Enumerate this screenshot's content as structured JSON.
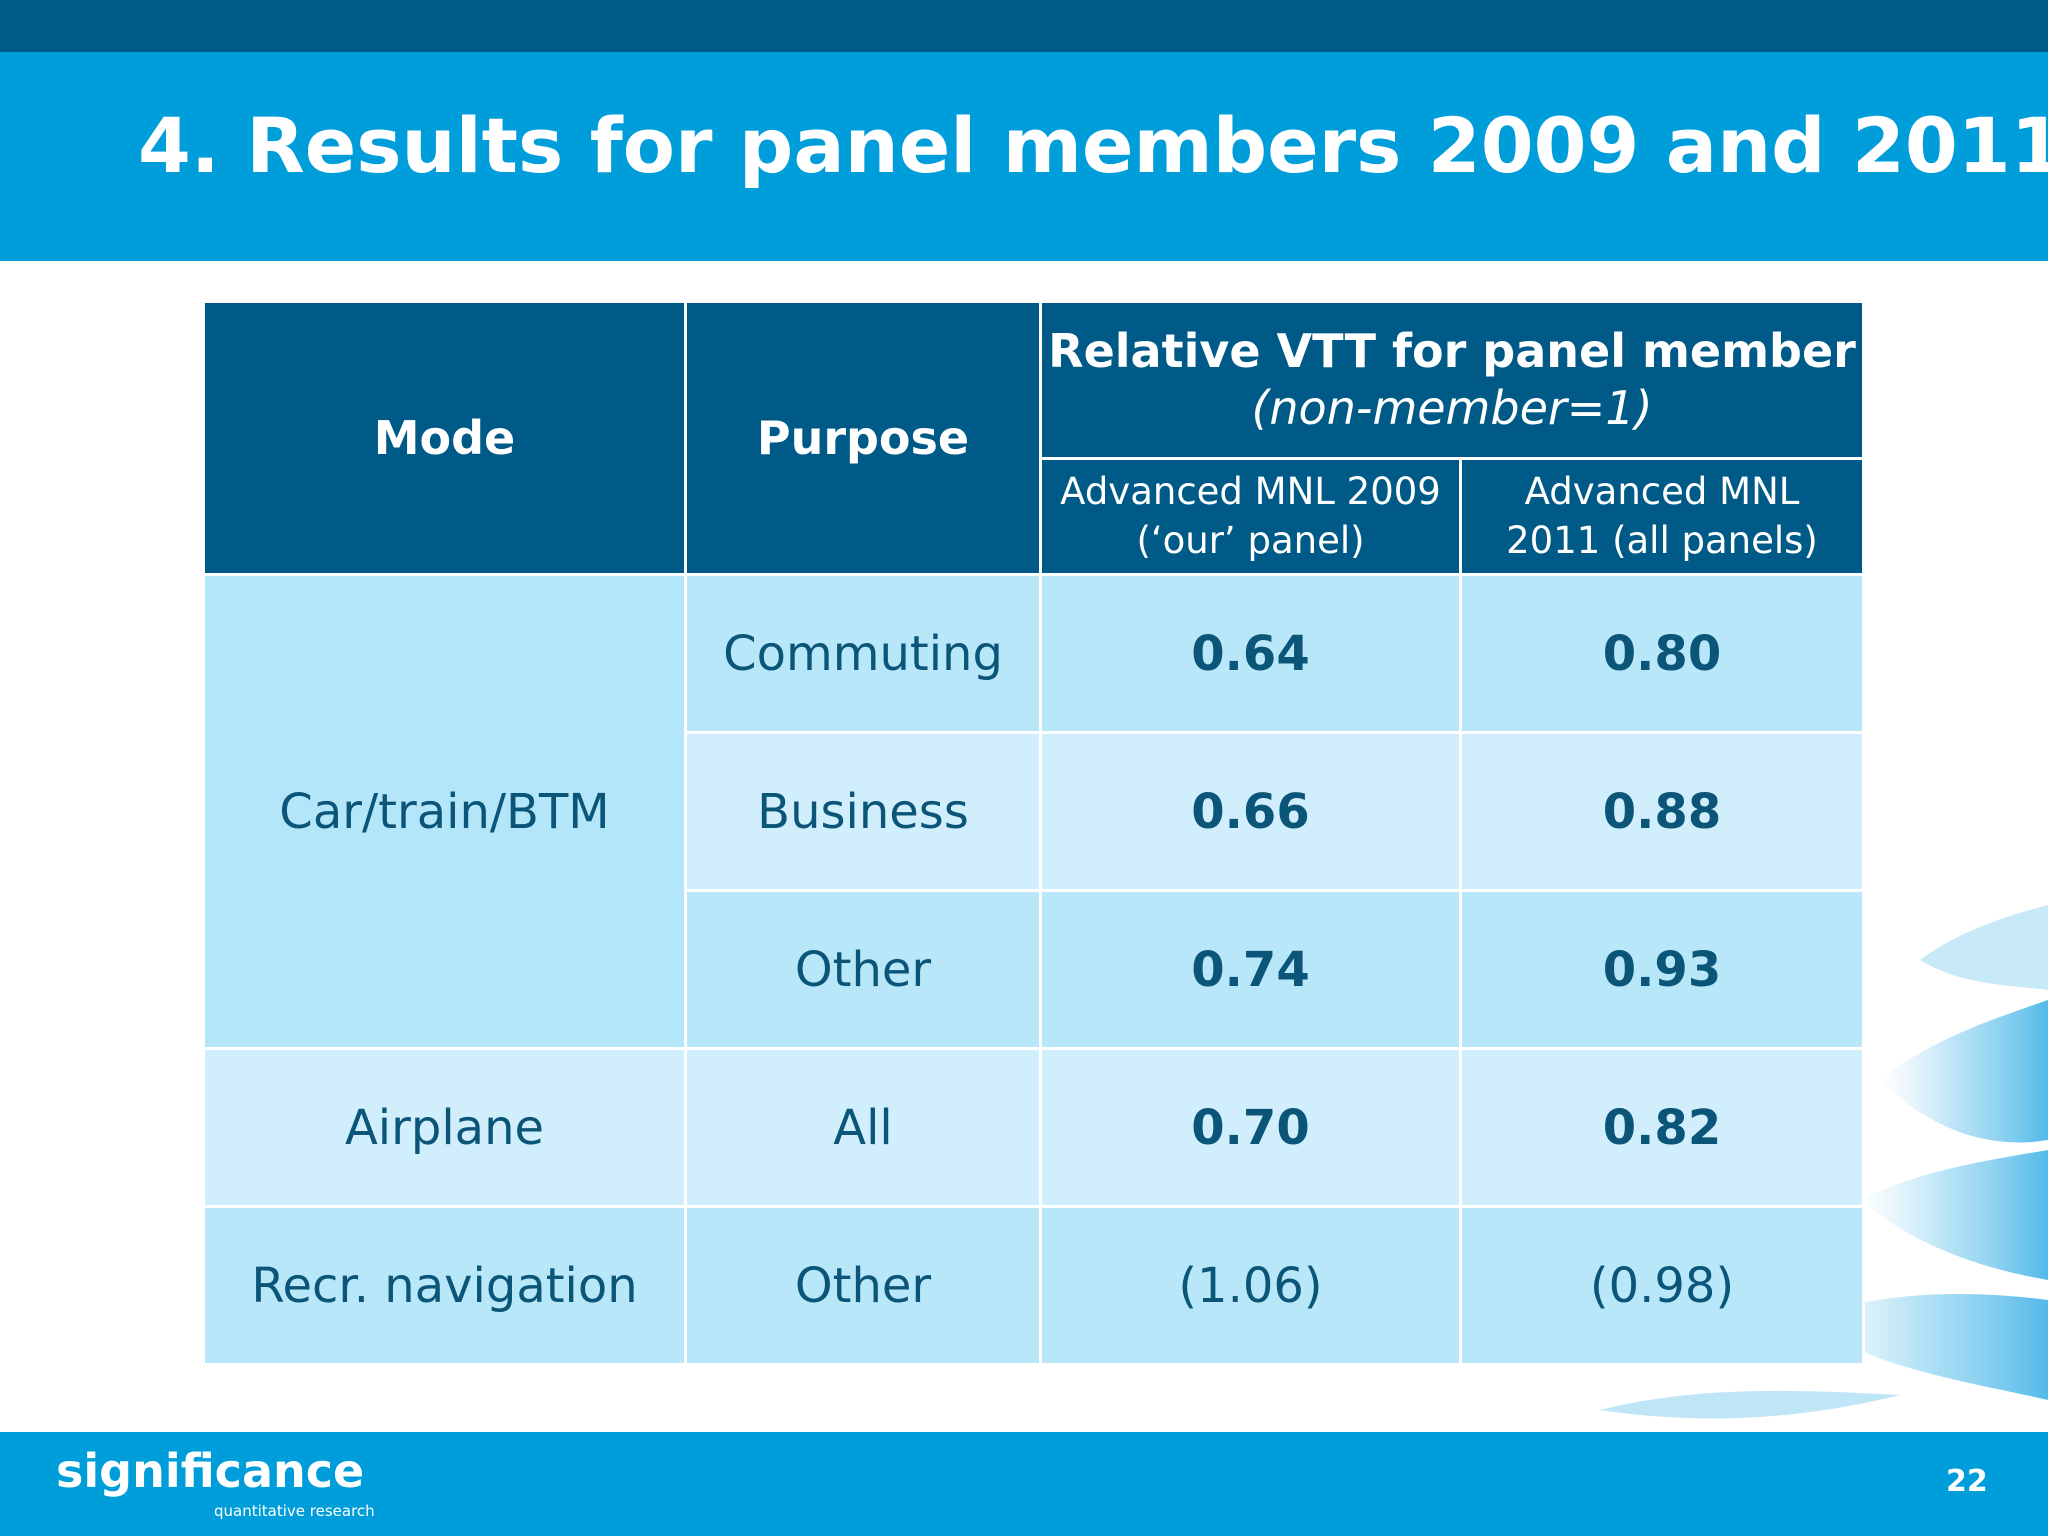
{
  "slide": {
    "title": "4. Results for panel members 2009 and 2011",
    "page_number": "22"
  },
  "logo": {
    "name": "significance",
    "tagline": "quantitative research"
  },
  "table": {
    "headers": {
      "mode": "Mode",
      "purpose": "Purpose",
      "group_title": "Relative VTT for panel member",
      "group_subtitle": "(non-member=1)",
      "col_2009_line1": "Advanced MNL 2009",
      "col_2009_line2": "(‘our’ panel)",
      "col_2011_line1": "Advanced MNL",
      "col_2011_line2": "2011 (all panels)"
    },
    "rows": [
      {
        "mode": "Car/train/BTM",
        "purpose": "Commuting",
        "v2009": "0.64",
        "v2011": "0.80"
      },
      {
        "mode": "",
        "purpose": "Business",
        "v2009": "0.66",
        "v2011": "0.88"
      },
      {
        "mode": "",
        "purpose": "Other",
        "v2009": "0.74",
        "v2011": "0.93"
      },
      {
        "mode": "Airplane",
        "purpose": "All",
        "v2009": "0.70",
        "v2011": "0.82"
      },
      {
        "mode": "Recr. navigation",
        "purpose": "Other",
        "v2009": "(1.06)",
        "v2011": "(0.98)"
      }
    ]
  },
  "colors": {
    "dark_blue": "#005a87",
    "bright_blue": "#009ddb",
    "cell_light": "#b4e6fa",
    "cell_lighter": "#d0eefc",
    "text_dark": "#0b5578"
  }
}
